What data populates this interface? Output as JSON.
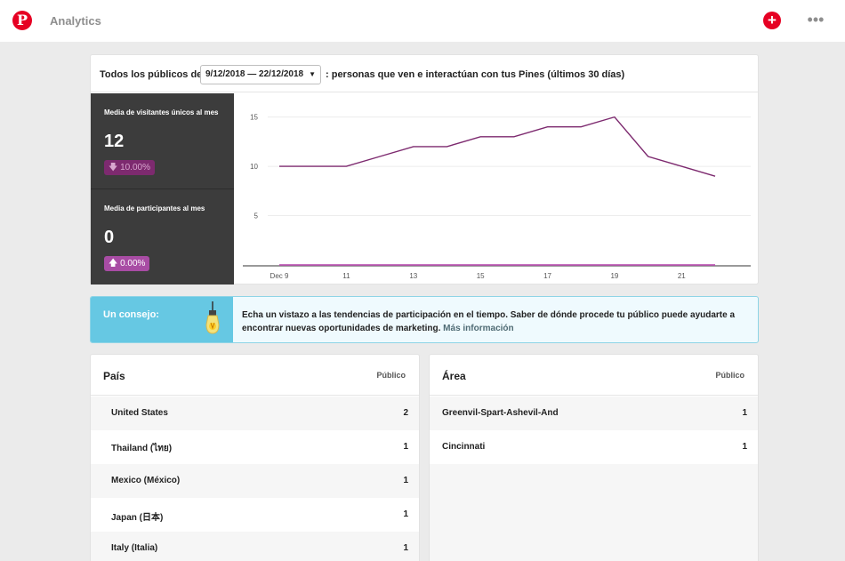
{
  "app": {
    "title": "Analytics"
  },
  "card": {
    "pre": "Todos los públicos de",
    "date_range": "9/12/2018 — 22/12/2018",
    "post": ": personas que ven e interactúan con tus Pines (últimos 30 días)"
  },
  "metrics": [
    {
      "label": "Media de visitantes únicos al mes",
      "value": "12",
      "change": "10.00%",
      "direction": "down"
    },
    {
      "label": "Media de participantes al mes",
      "value": "0",
      "change": "0.00%",
      "direction": "up"
    }
  ],
  "chart_data": {
    "type": "line",
    "x": [
      9,
      10,
      11,
      12,
      13,
      14,
      15,
      16,
      17,
      18,
      19,
      20,
      21,
      22
    ],
    "x_tick_values": [
      9,
      11,
      13,
      15,
      17,
      19,
      21
    ],
    "x_tick_labels": [
      "Dec 9",
      "11",
      "13",
      "15",
      "17",
      "19",
      "21"
    ],
    "y_ticks": [
      5,
      10,
      15
    ],
    "ylim": [
      0,
      16.5
    ],
    "series": [
      {
        "values": [
          10,
          10,
          10,
          11,
          12,
          12,
          13,
          13,
          14,
          14,
          15,
          11,
          10,
          9
        ],
        "color": "#7d2a6f"
      },
      {
        "values": [
          0,
          0,
          0,
          0,
          0,
          0,
          0,
          0,
          0,
          0,
          0,
          0,
          0,
          0
        ],
        "color": "#b43faa"
      }
    ],
    "grid": true
  },
  "tip": {
    "title": "Un consejo:",
    "text": "Echa un vistazo a las tendencias de participación en el tiempo. Saber de dónde procede tu público puede ayudarte a encontrar nuevas oportunidades de marketing.",
    "link": "Más información"
  },
  "country_table": {
    "title": "País",
    "column": "Público",
    "rows": [
      {
        "name": "United States",
        "value": "2"
      },
      {
        "name": "Thailand (ไทย)",
        "value": "1"
      },
      {
        "name": "Mexico (México)",
        "value": "1"
      },
      {
        "name": "Japan (日本)",
        "value": "1"
      },
      {
        "name": "Italy (Italia)",
        "value": "1"
      }
    ]
  },
  "area_table": {
    "title": "Área",
    "column": "Público",
    "rows": [
      {
        "name": "Greenvil-Spart-Ashevil-And",
        "value": "1"
      },
      {
        "name": "Cincinnati",
        "value": "1"
      }
    ]
  },
  "colors": {
    "brand": "#e60023",
    "line_visitors": "#7d2a6f",
    "line_participants": "#b43faa",
    "tip_accent": "#66c8e3"
  }
}
